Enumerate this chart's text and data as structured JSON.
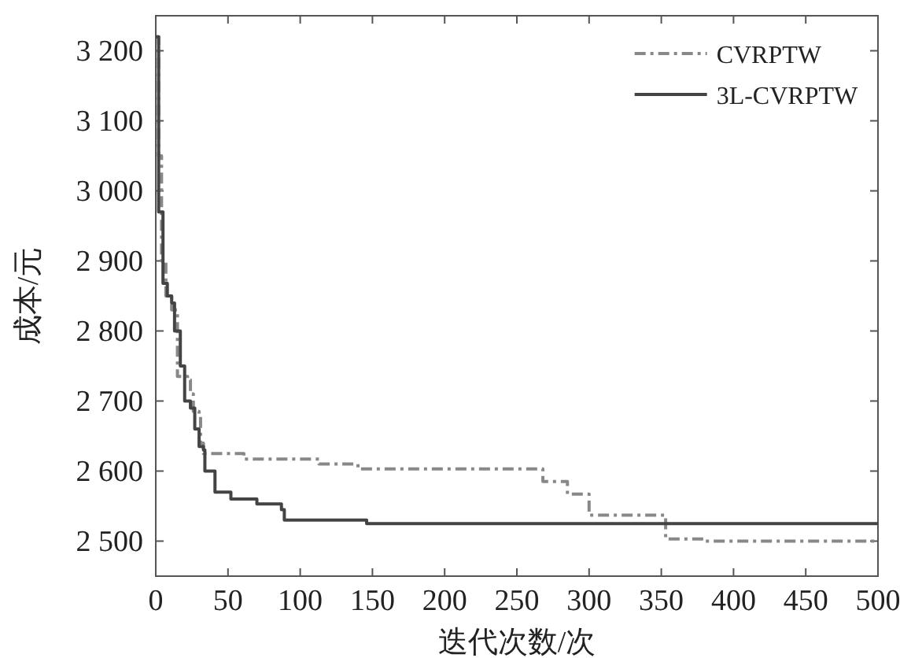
{
  "chart_data": {
    "type": "step",
    "xlabel": "迭代次数/次",
    "ylabel": "成本/元",
    "xlim": [
      0,
      500
    ],
    "xticks": [
      0,
      50,
      100,
      150,
      200,
      250,
      300,
      350,
      400,
      450,
      500
    ],
    "ylim": [
      2450,
      3250
    ],
    "yticks": [
      {
        "value": 2500,
        "label": "2 500"
      },
      {
        "value": 2600,
        "label": "2 600"
      },
      {
        "value": 2700,
        "label": "2 700"
      },
      {
        "value": 2800,
        "label": "2 800"
      },
      {
        "value": 2900,
        "label": "2 900"
      },
      {
        "value": 3000,
        "label": "3 000"
      },
      {
        "value": 3100,
        "label": "3 100"
      },
      {
        "value": 3200,
        "label": "3 200"
      }
    ],
    "grid": false,
    "legend": "top right",
    "marker": "none",
    "series": [
      {
        "name": "CVRPTW",
        "color": "#888888",
        "line_style": "dashdot",
        "x": [
          0,
          2,
          4,
          7,
          11,
          15,
          22,
          24,
          26,
          30,
          31,
          33,
          61,
          113,
          140,
          268,
          285,
          300,
          353,
          380,
          500
        ],
        "values": [
          3220,
          3050,
          2900,
          2850,
          2830,
          2735,
          2730,
          2710,
          2685,
          2680,
          2640,
          2625,
          2617,
          2610,
          2603,
          2585,
          2567,
          2537,
          2503,
          2500,
          2500
        ]
      },
      {
        "name": "3L-CVRPTW",
        "color": "#444444",
        "line_style": "solid",
        "x": [
          0,
          2,
          5,
          8,
          11,
          13,
          17,
          20,
          24,
          27,
          30,
          33,
          34,
          41,
          52,
          70,
          87,
          89,
          93,
          146,
          500
        ],
        "values": [
          3220,
          2970,
          2868,
          2850,
          2840,
          2800,
          2750,
          2700,
          2690,
          2660,
          2635,
          2630,
          2600,
          2570,
          2560,
          2553,
          2545,
          2530,
          2530,
          2525,
          2525
        ]
      }
    ]
  }
}
